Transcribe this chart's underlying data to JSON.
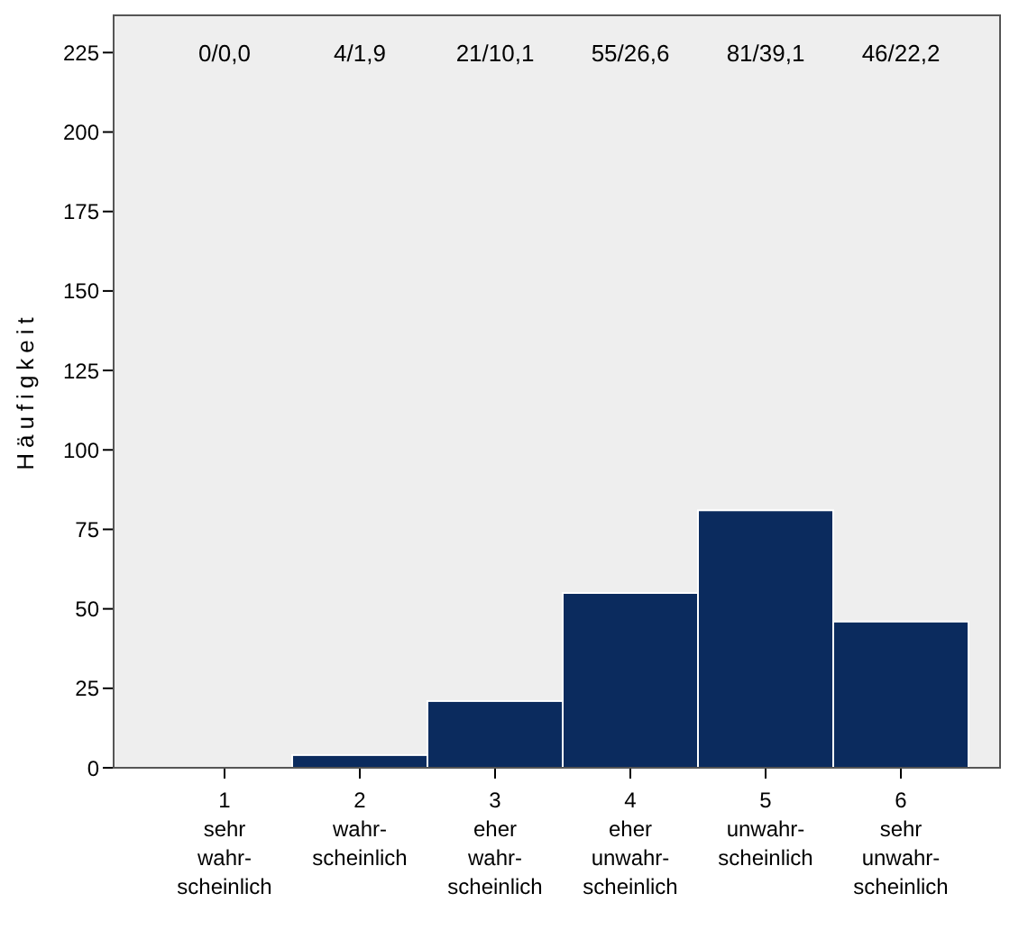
{
  "chart_data": {
    "type": "bar",
    "ylabel": "Häufigkeit",
    "categories": [
      "1\nsehr\nwahr-\nscheinlich",
      "2\nwahr-\nscheinlich",
      "3\neher\nwahr-\nscheinlich",
      "4\neher\nunwahr-\nscheinlich",
      "5\nunwahr-\nscheinlich",
      "6\nsehr\nunwahr-\nscheinlich"
    ],
    "values": [
      0,
      4,
      21,
      55,
      81,
      46
    ],
    "annotations": [
      "0/0,0",
      "4/1,9",
      "21/10,1",
      "55/26,6",
      "81/39,1",
      "46/22,2"
    ],
    "color": "#0b2b5e",
    "ylim": [
      0,
      237
    ],
    "yticks": [
      0,
      25,
      50,
      75,
      100,
      125,
      150,
      175,
      200,
      225
    ]
  }
}
